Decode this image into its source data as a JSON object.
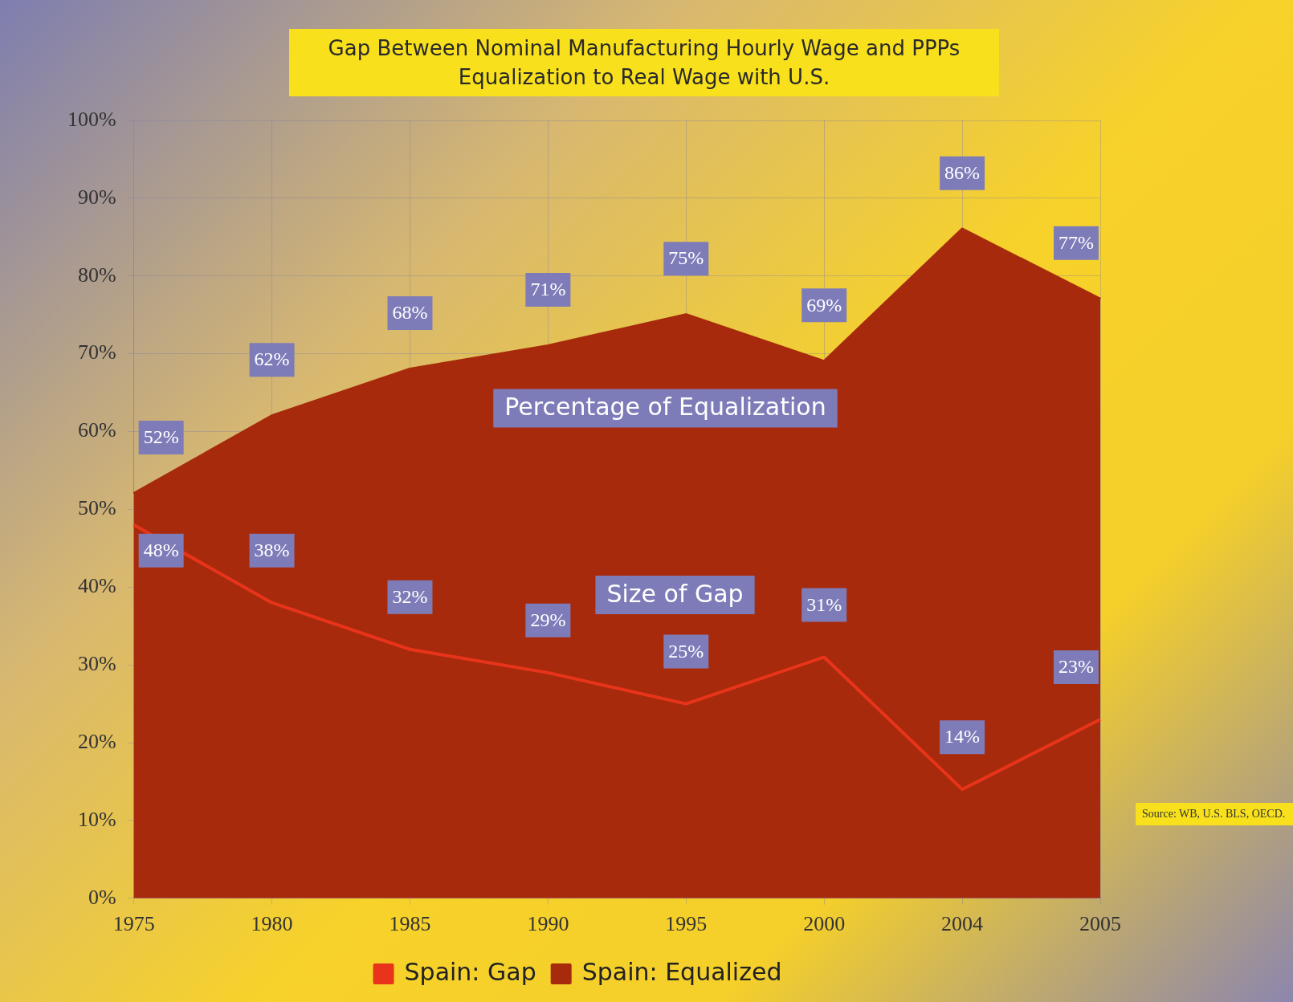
{
  "chart_data": {
    "type": "area",
    "title": "Gap Between Nominal Manufacturing Hourly Wage and PPPs Equalization to Real Wage with U.S.",
    "categories": [
      "1975",
      "1980",
      "1985",
      "1990",
      "1995",
      "2000",
      "2004",
      "2005"
    ],
    "series": [
      {
        "name": "Spain: Equalized",
        "color": "#a82a0c",
        "values": [
          52,
          62,
          68,
          71,
          75,
          69,
          86,
          77
        ],
        "value_labels": [
          "52%",
          "62%",
          "68%",
          "71%",
          "75%",
          "69%",
          "86%",
          "77%"
        ]
      },
      {
        "name": "Spain: Gap",
        "type": "line",
        "color": "#e8341a",
        "values": [
          48,
          38,
          32,
          29,
          25,
          31,
          14,
          23
        ],
        "value_labels": [
          "48%",
          "38%",
          "32%",
          "29%",
          "25%",
          "31%",
          "14%",
          "23%"
        ]
      }
    ],
    "ylim": [
      0,
      100
    ],
    "yticks": [
      {
        "value": 0,
        "label": "0%"
      },
      {
        "value": 10,
        "label": "10%"
      },
      {
        "value": 20,
        "label": "20%"
      },
      {
        "value": 30,
        "label": "30%"
      },
      {
        "value": 40,
        "label": "40%"
      },
      {
        "value": 50,
        "label": "50%"
      },
      {
        "value": 60,
        "label": "60%"
      },
      {
        "value": 70,
        "label": "70%"
      },
      {
        "value": 80,
        "label": "80%"
      },
      {
        "value": 90,
        "label": "90%"
      },
      {
        "value": 100,
        "label": "100%"
      }
    ],
    "grid": true,
    "legend": "bottom",
    "marker": "none",
    "line_style": "solid",
    "annotations": [
      "Percentage of Equalization",
      "Size of Gap",
      "Source: WB, U.S. BLS, OECD."
    ]
  }
}
